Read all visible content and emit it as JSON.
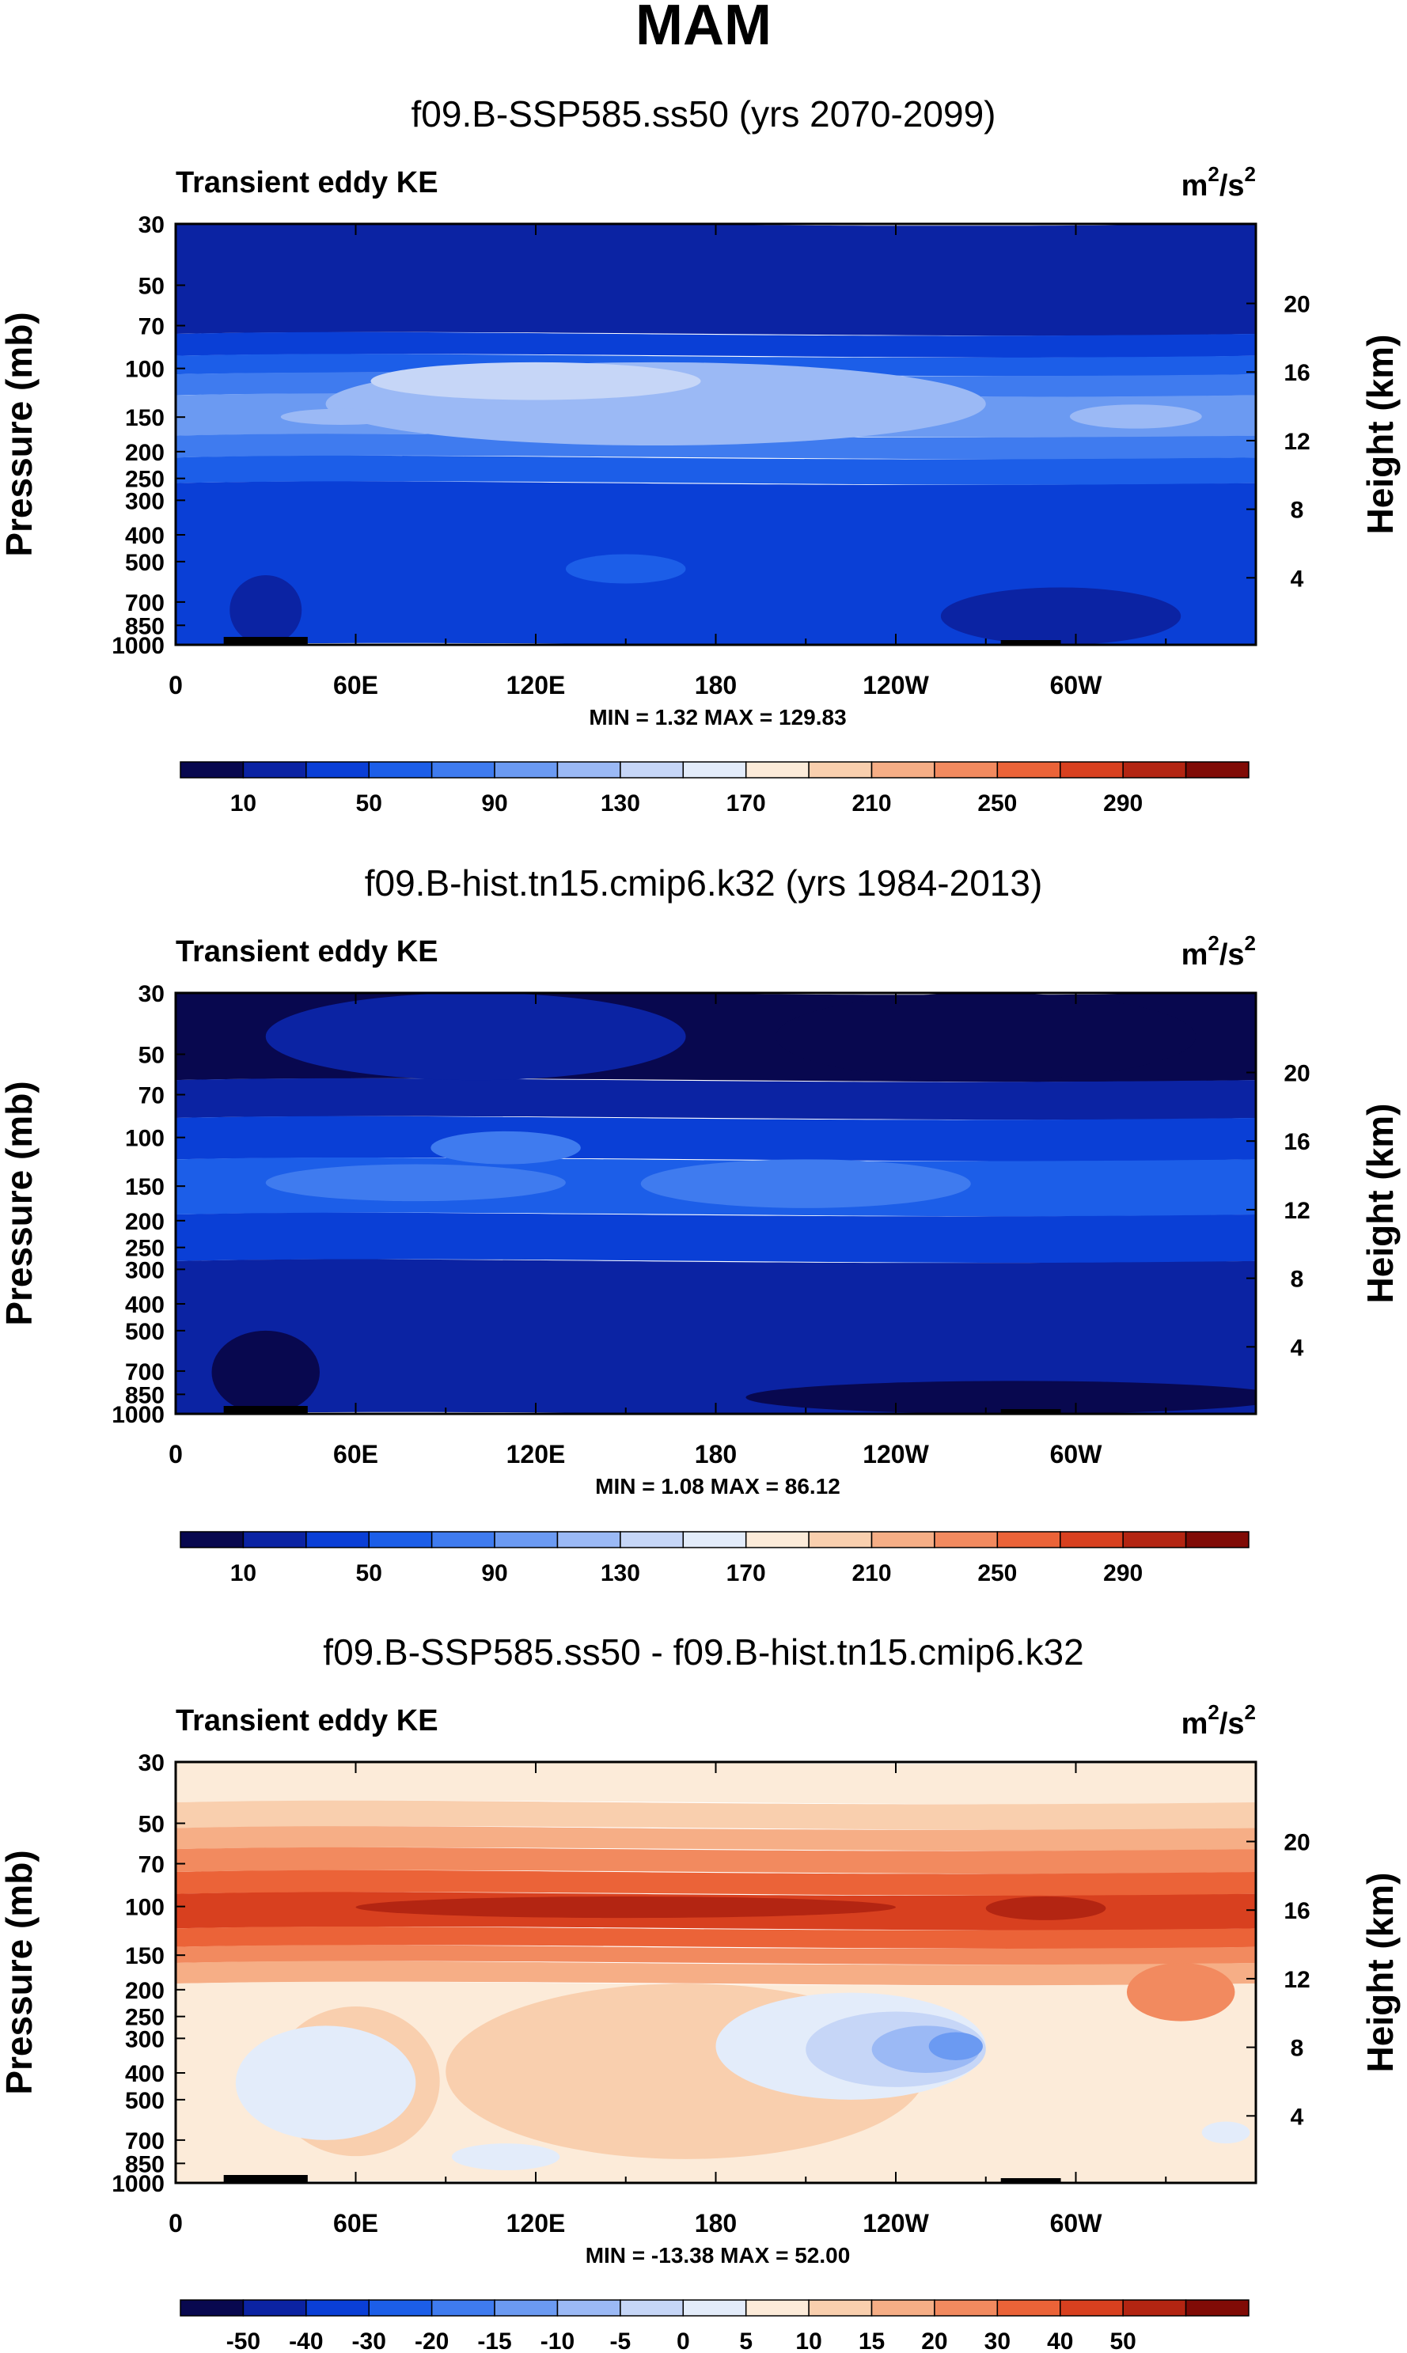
{
  "main_title": "MAM",
  "chart_data": [
    {
      "type": "contour",
      "title": "f09.B-SSP585.ss50 (yrs 2070-2099)",
      "left_string": "Transient eddy KE",
      "right_string": {
        "base": "m",
        "sup1": "2",
        "mid": "/s",
        "sup2": "2"
      },
      "xlabel": "",
      "ylabel": "Pressure (mb)",
      "ylabel_right": "Height (km)",
      "x_ticks": [
        {
          "lon": 0,
          "label": "0"
        },
        {
          "lon": 60,
          "label": "60E"
        },
        {
          "lon": 120,
          "label": "120E"
        },
        {
          "lon": 180,
          "label": "180"
        },
        {
          "lon": 240,
          "label": "120W"
        },
        {
          "lon": 300,
          "label": "60W"
        }
      ],
      "xlim": [
        0,
        360
      ],
      "y_ticks": [
        30,
        50,
        70,
        100,
        150,
        200,
        250,
        300,
        400,
        500,
        700,
        850,
        1000
      ],
      "ylim": [
        1000,
        30
      ],
      "height_ticks": [
        4,
        8,
        12,
        16,
        20
      ],
      "stats": "MIN =   1.32  MAX = 129.83",
      "colorbar": {
        "levels": [
          10,
          30,
          50,
          70,
          90,
          110,
          130,
          150,
          170,
          190,
          210,
          230,
          250,
          270,
          290
        ],
        "labels": [
          "10",
          "50",
          "90",
          "130",
          "170",
          "210",
          "250",
          "290"
        ],
        "colors": [
          "#08084f",
          "#0b23a3",
          "#0a3fd6",
          "#1c5ee8",
          "#3f7bef",
          "#6b9af2",
          "#9bb9f5",
          "#c6d6f7",
          "#e3ecfa",
          "#fcebd9",
          "#f9cfae",
          "#f6ae86",
          "#f28a5f",
          "#eb6338",
          "#d8401f",
          "#b32512",
          "#800b06"
        ]
      },
      "bands": [
        {
          "p_top": 30,
          "p_bot": 75,
          "c": 1
        },
        {
          "p_top": 75,
          "p_bot": 90,
          "c": 2
        },
        {
          "p_top": 90,
          "p_bot": 105,
          "c": 3
        },
        {
          "p_top": 105,
          "p_bot": 125,
          "c": 4
        },
        {
          "p_top": 125,
          "p_bot": 175,
          "c": 5
        },
        {
          "p_top": 175,
          "p_bot": 210,
          "c": 4
        },
        {
          "p_top": 210,
          "p_bot": 260,
          "c": 3
        },
        {
          "p_top": 260,
          "p_bot": 1000,
          "c": 2
        }
      ],
      "blobs": [
        {
          "lon": 160,
          "lon_w": 110,
          "p": 150,
          "p_top": 95,
          "p_bot": 190,
          "c": 6
        },
        {
          "lon": 120,
          "lon_w": 55,
          "p": 110,
          "p_top": 95,
          "p_bot": 130,
          "c": 7
        },
        {
          "lon": 55,
          "lon_w": 20,
          "p": 150,
          "p_top": 140,
          "p_bot": 160,
          "c": 6
        },
        {
          "lon": 320,
          "lon_w": 22,
          "p": 150,
          "p_top": 135,
          "p_bot": 165,
          "c": 6
        },
        {
          "lon": 150,
          "lon_w": 20,
          "p": 530,
          "p_top": 470,
          "p_bot": 600,
          "c": 3
        },
        {
          "lon": 30,
          "lon_w": 12,
          "p": 820,
          "p_top": 560,
          "p_bot": 1000,
          "c": 1
        },
        {
          "lon": 295,
          "lon_w": 40,
          "p": 840,
          "p_top": 620,
          "p_bot": 1000,
          "c": 1
        }
      ]
    },
    {
      "type": "contour",
      "title": "f09.B-hist.tn15.cmip6.k32 (yrs 1984-2013)",
      "left_string": "Transient eddy KE",
      "right_string": {
        "base": "m",
        "sup1": "2",
        "mid": "/s",
        "sup2": "2"
      },
      "xlabel": "",
      "ylabel": "Pressure (mb)",
      "ylabel_right": "Height (km)",
      "x_ticks": [
        {
          "lon": 0,
          "label": "0"
        },
        {
          "lon": 60,
          "label": "60E"
        },
        {
          "lon": 120,
          "label": "120E"
        },
        {
          "lon": 180,
          "label": "180"
        },
        {
          "lon": 240,
          "label": "120W"
        },
        {
          "lon": 300,
          "label": "60W"
        }
      ],
      "xlim": [
        0,
        360
      ],
      "y_ticks": [
        30,
        50,
        70,
        100,
        150,
        200,
        250,
        300,
        400,
        500,
        700,
        850,
        1000
      ],
      "ylim": [
        1000,
        30
      ],
      "height_ticks": [
        4,
        8,
        12,
        16,
        20
      ],
      "stats": "MIN =   1.08  MAX =  86.12",
      "colorbar": {
        "levels": [
          10,
          30,
          50,
          70,
          90,
          110,
          130,
          150,
          170,
          190,
          210,
          230,
          250,
          270,
          290
        ],
        "labels": [
          "10",
          "50",
          "90",
          "130",
          "170",
          "210",
          "250",
          "290"
        ],
        "colors": [
          "#08084f",
          "#0b23a3",
          "#0a3fd6",
          "#1c5ee8",
          "#3f7bef",
          "#6b9af2",
          "#9bb9f5",
          "#c6d6f7",
          "#e3ecfa",
          "#fcebd9",
          "#f9cfae",
          "#f6ae86",
          "#f28a5f",
          "#eb6338",
          "#d8401f",
          "#b32512",
          "#800b06"
        ]
      },
      "bands": [
        {
          "p_top": 30,
          "p_bot": 62,
          "c": 0
        },
        {
          "p_top": 62,
          "p_bot": 85,
          "c": 1
        },
        {
          "p_top": 85,
          "p_bot": 120,
          "c": 2
        },
        {
          "p_top": 120,
          "p_bot": 190,
          "c": 3
        },
        {
          "p_top": 190,
          "p_bot": 280,
          "c": 2
        },
        {
          "p_top": 280,
          "p_bot": 1000,
          "c": 1
        }
      ],
      "blobs": [
        {
          "lon": 100,
          "lon_w": 70,
          "p": 60,
          "p_top": 30,
          "p_bot": 62,
          "c": 1
        },
        {
          "lon": 270,
          "lon_w": 70,
          "p": 45,
          "p_top": 30,
          "p_bot": 62,
          "c": 0
        },
        {
          "lon": 210,
          "lon_w": 55,
          "p": 145,
          "p_top": 120,
          "p_bot": 180,
          "c": 4
        },
        {
          "lon": 80,
          "lon_w": 50,
          "p": 145,
          "p_top": 125,
          "p_bot": 170,
          "c": 4
        },
        {
          "lon": 110,
          "lon_w": 25,
          "p": 110,
          "p_top": 95,
          "p_bot": 125,
          "c": 4
        },
        {
          "lon": 30,
          "lon_w": 18,
          "p": 800,
          "p_top": 500,
          "p_bot": 1000,
          "c": 0
        },
        {
          "lon": 280,
          "lon_w": 90,
          "p": 900,
          "p_top": 760,
          "p_bot": 1000,
          "c": 0
        }
      ]
    },
    {
      "type": "contour",
      "title": "f09.B-SSP585.ss50 - f09.B-hist.tn15.cmip6.k32",
      "left_string": "Transient eddy KE",
      "right_string": {
        "base": "m",
        "sup1": "2",
        "mid": "/s",
        "sup2": "2"
      },
      "xlabel": "",
      "ylabel": "Pressure (mb)",
      "ylabel_right": "Height (km)",
      "x_ticks": [
        {
          "lon": 0,
          "label": "0"
        },
        {
          "lon": 60,
          "label": "60E"
        },
        {
          "lon": 120,
          "label": "120E"
        },
        {
          "lon": 180,
          "label": "180"
        },
        {
          "lon": 240,
          "label": "120W"
        },
        {
          "lon": 300,
          "label": "60W"
        }
      ],
      "xlim": [
        0,
        360
      ],
      "y_ticks": [
        30,
        50,
        70,
        100,
        150,
        200,
        250,
        300,
        400,
        500,
        700,
        850,
        1000
      ],
      "ylim": [
        1000,
        30
      ],
      "height_ticks": [
        4,
        8,
        12,
        16,
        20
      ],
      "stats": "MIN = -13.38  MAX =  52.00",
      "colorbar": {
        "levels": [
          -50,
          -40,
          -30,
          -20,
          -15,
          -10,
          -5,
          0,
          5,
          10,
          15,
          20,
          30,
          40,
          50
        ],
        "labels": [
          "-50",
          "-40",
          "-30",
          "-20",
          "-15",
          "-10",
          "-5",
          "0",
          "5",
          "10",
          "15",
          "20",
          "30",
          "40",
          "50"
        ],
        "colors": [
          "#08084f",
          "#0b23a3",
          "#0a3fd6",
          "#1c5ee8",
          "#3f7bef",
          "#6b9af2",
          "#9bb9f5",
          "#c6d6f7",
          "#e3ecfa",
          "#fcebd9",
          "#f9cfae",
          "#f6ae86",
          "#f28a5f",
          "#eb6338",
          "#d8401f",
          "#b32512",
          "#800b06"
        ]
      },
      "bands": [
        {
          "p_top": 30,
          "p_bot": 42,
          "c": 9
        },
        {
          "p_top": 42,
          "p_bot": 52,
          "c": 10
        },
        {
          "p_top": 52,
          "p_bot": 62,
          "c": 11
        },
        {
          "p_top": 62,
          "p_bot": 75,
          "c": 12
        },
        {
          "p_top": 75,
          "p_bot": 90,
          "c": 13
        },
        {
          "p_top": 90,
          "p_bot": 120,
          "c": 14
        },
        {
          "p_top": 120,
          "p_bot": 140,
          "c": 13
        },
        {
          "p_top": 140,
          "p_bot": 160,
          "c": 12
        },
        {
          "p_top": 160,
          "p_bot": 190,
          "c": 11
        },
        {
          "p_top": 190,
          "p_bot": 1000,
          "c": 9
        }
      ],
      "blobs": [
        {
          "lon": 150,
          "lon_w": 90,
          "p": 100,
          "p_top": 92,
          "p_bot": 110,
          "c": 15
        },
        {
          "lon": 290,
          "lon_w": 20,
          "p": 100,
          "p_top": 92,
          "p_bot": 112,
          "c": 15
        },
        {
          "lon": 170,
          "lon_w": 80,
          "p": 330,
          "p_top": 190,
          "p_bot": 820,
          "c": 10
        },
        {
          "lon": 60,
          "lon_w": 28,
          "p": 400,
          "p_top": 230,
          "p_bot": 800,
          "c": 10
        },
        {
          "lon": 225,
          "lon_w": 45,
          "p": 300,
          "p_top": 205,
          "p_bot": 500,
          "c": 8
        },
        {
          "lon": 240,
          "lon_w": 30,
          "p": 330,
          "p_top": 240,
          "p_bot": 450,
          "c": 7
        },
        {
          "lon": 250,
          "lon_w": 18,
          "p": 330,
          "p_top": 270,
          "p_bot": 400,
          "c": 6
        },
        {
          "lon": 260,
          "lon_w": 9,
          "p": 320,
          "p_top": 285,
          "p_bot": 360,
          "c": 5
        },
        {
          "lon": 50,
          "lon_w": 30,
          "p": 400,
          "p_top": 270,
          "p_bot": 700,
          "c": 8
        },
        {
          "lon": 110,
          "lon_w": 18,
          "p": 800,
          "p_top": 720,
          "p_bot": 900,
          "c": 8
        },
        {
          "lon": 335,
          "lon_w": 18,
          "p": 200,
          "p_top": 160,
          "p_bot": 260,
          "c": 12
        },
        {
          "lon": 350,
          "lon_w": 8,
          "p": 650,
          "p_top": 600,
          "p_bot": 720,
          "c": 8
        }
      ]
    }
  ]
}
